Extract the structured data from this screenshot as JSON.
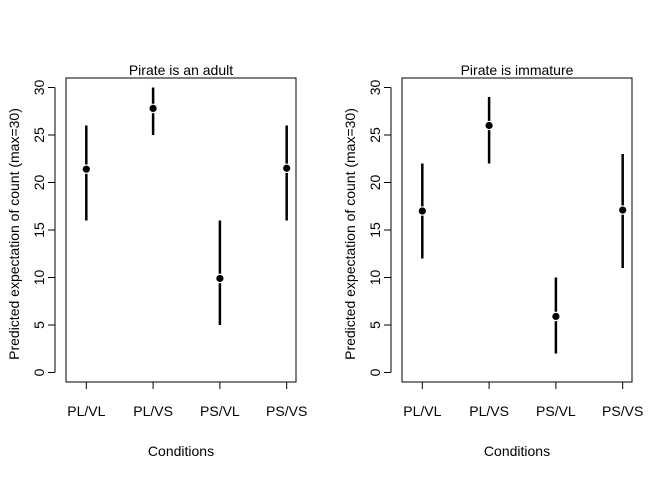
{
  "chart_data": [
    {
      "type": "scatter",
      "title": "Pirate is an adult",
      "xlabel": "Conditions",
      "ylabel": "Predicted expectation of count (max=30)",
      "categories": [
        "PL/VL",
        "PL/VS",
        "PS/VL",
        "PS/VS"
      ],
      "y_ticks": [
        0,
        5,
        10,
        15,
        20,
        25,
        30
      ],
      "ylim": [
        -1,
        31
      ],
      "grid": false,
      "series": [
        {
          "points": [
            21.4,
            27.8,
            9.9,
            21.5
          ],
          "lower": [
            16,
            25,
            5,
            16
          ],
          "upper": [
            26,
            30,
            16,
            26
          ]
        }
      ]
    },
    {
      "type": "scatter",
      "title": "Pirate is immature",
      "xlabel": "Conditions",
      "ylabel": "Predicted expectation of count (max=30)",
      "categories": [
        "PL/VL",
        "PL/VS",
        "PS/VL",
        "PS/VS"
      ],
      "y_ticks": [
        0,
        5,
        10,
        15,
        20,
        25,
        30
      ],
      "ylim": [
        -1,
        31
      ],
      "grid": false,
      "series": [
        {
          "points": [
            17,
            26,
            5.9,
            17.1
          ],
          "lower": [
            12,
            22,
            2,
            11
          ],
          "upper": [
            22,
            29,
            10,
            23
          ]
        }
      ]
    }
  ]
}
